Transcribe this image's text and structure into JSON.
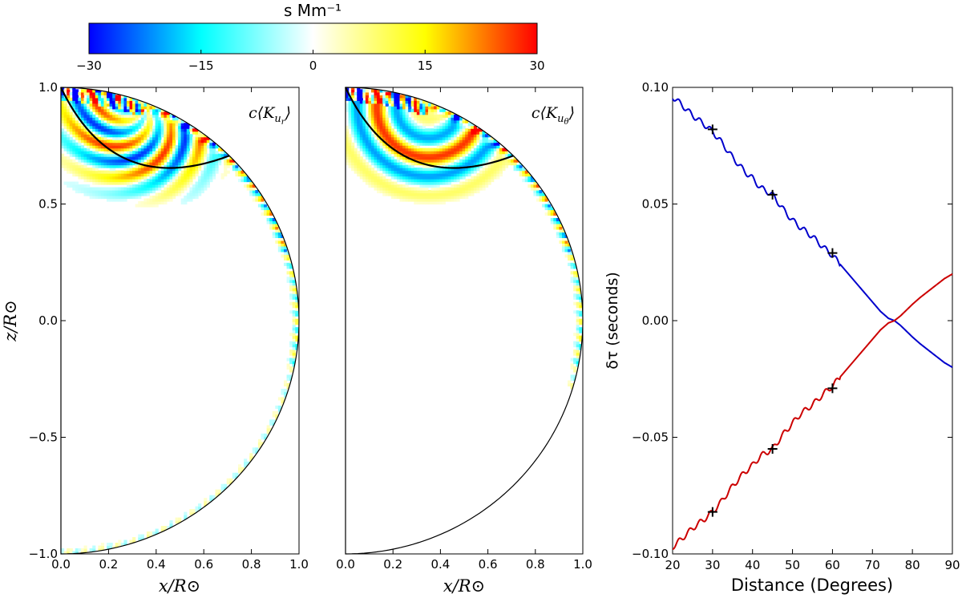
{
  "chart_data": {
    "colorbar": {
      "label": "s Mm⁻¹",
      "ticks": [
        -30,
        -15,
        0,
        15,
        30
      ],
      "tick_labels": [
        "−30",
        "−15",
        "0",
        "15",
        "30"
      ],
      "range": [
        -30,
        30
      ],
      "colormap": [
        "#0000ff",
        "#00ffff",
        "#ffffff",
        "#ffff00",
        "#ff0000"
      ]
    },
    "panels": [
      {
        "type": "heatmap",
        "title": "c⟨K_{u_r}⟩",
        "title_base": "c⟨K",
        "title_sub": "u",
        "title_subsub": "r",
        "xlabel": "x/R⊙",
        "ylabel": "z/R⊙",
        "xlim": [
          0.0,
          1.0
        ],
        "ylim": [
          -1.0,
          1.0
        ],
        "xticks": [
          0.0,
          0.2,
          0.4,
          0.6,
          0.8,
          1.0
        ],
        "xtick_labels": [
          "0.0",
          "0.2",
          "0.4",
          "0.6",
          "0.8",
          "1.0"
        ],
        "yticks": [
          -1.0,
          -0.5,
          0.0,
          0.5,
          1.0
        ],
        "ytick_labels": [
          "−1.0",
          "−0.5",
          "0.0",
          "0.5",
          "1.0"
        ],
        "ray_path": {
          "start": [
            0.0,
            1.0
          ],
          "end": [
            0.707,
            0.707
          ],
          "lowest_z": 0.62
        }
      },
      {
        "type": "heatmap",
        "title": "c⟨K_{u_θ}⟩",
        "title_base": "c⟨K",
        "title_sub": "u",
        "title_subsub": "θ",
        "xlabel": "x/R⊙",
        "xlim": [
          0.0,
          1.0
        ],
        "ylim": [
          -1.0,
          1.0
        ],
        "xticks": [
          0.0,
          0.2,
          0.4,
          0.6,
          0.8,
          1.0
        ],
        "xtick_labels": [
          "0.0",
          "0.2",
          "0.4",
          "0.6",
          "0.8",
          "1.0"
        ],
        "ray_path": {
          "start": [
            0.0,
            1.0
          ],
          "end": [
            0.707,
            0.707
          ],
          "lowest_z": 0.62
        }
      },
      {
        "type": "line",
        "xlabel": "Distance (Degrees)",
        "ylabel": "δτ (seconds)",
        "xlim": [
          20,
          90
        ],
        "ylim": [
          -0.1,
          0.1
        ],
        "xticks": [
          20,
          30,
          40,
          50,
          60,
          70,
          80,
          90
        ],
        "xtick_labels": [
          "20",
          "30",
          "40",
          "50",
          "60",
          "70",
          "80",
          "90"
        ],
        "yticks": [
          -0.1,
          -0.05,
          0.0,
          0.05,
          0.1
        ],
        "ytick_labels": [
          "−0.10",
          "−0.05",
          "0.00",
          "0.05",
          "0.10"
        ],
        "series": [
          {
            "name": "blue",
            "color": "#0000cc",
            "x": [
              20,
              22,
              25,
              28,
              30,
              32,
              35,
              38,
              40,
              42,
              45,
              48,
              50,
              52,
              55,
              58,
              60,
              62,
              65,
              68,
              70,
              72,
              74,
              75.5,
              77,
              80,
              82,
              85,
              88,
              90
            ],
            "y": [
              0.096,
              0.093,
              0.088,
              0.084,
              0.081,
              0.077,
              0.07,
              0.064,
              0.061,
              0.057,
              0.054,
              0.047,
              0.043,
              0.04,
              0.036,
              0.031,
              0.028,
              0.024,
              0.018,
              0.012,
              0.008,
              0.004,
              0.001,
              0.0,
              -0.002,
              -0.007,
              -0.01,
              -0.014,
              -0.018,
              -0.02
            ]
          },
          {
            "name": "red",
            "color": "#cc0000",
            "x": [
              20,
              22,
              25,
              28,
              30,
              32,
              35,
              38,
              40,
              42,
              45,
              48,
              50,
              52,
              55,
              58,
              60,
              62,
              65,
              68,
              70,
              72,
              74,
              75.5,
              77,
              80,
              82,
              85,
              88,
              90
            ],
            "y": [
              -0.097,
              -0.094,
              -0.089,
              -0.085,
              -0.082,
              -0.078,
              -0.071,
              -0.065,
              -0.062,
              -0.058,
              -0.055,
              -0.048,
              -0.044,
              -0.04,
              -0.036,
              -0.031,
              -0.028,
              -0.024,
              -0.018,
              -0.012,
              -0.008,
              -0.004,
              -0.001,
              0.0,
              0.002,
              0.007,
              0.01,
              0.014,
              0.018,
              0.02
            ]
          }
        ],
        "markers": [
          {
            "x": 30,
            "y": 0.082
          },
          {
            "x": 45,
            "y": 0.054
          },
          {
            "x": 60,
            "y": 0.029
          },
          {
            "x": 30,
            "y": -0.082
          },
          {
            "x": 45,
            "y": -0.055
          },
          {
            "x": 60,
            "y": -0.029
          }
        ]
      }
    ]
  }
}
